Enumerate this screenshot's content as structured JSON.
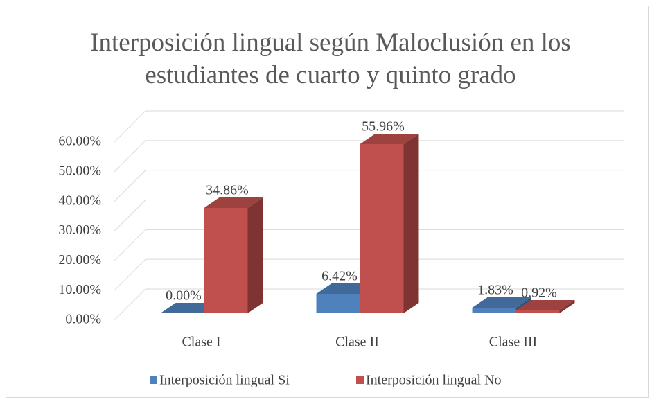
{
  "chart_data": {
    "type": "bar3d",
    "title": "Interposición lingual según Maloclusión en los estudiantes de cuarto y quinto grado",
    "categories": [
      "Clase I",
      "Clase II",
      "Clase III"
    ],
    "series": [
      {
        "name": "Interposición lingual Si",
        "color": "#4f81bd",
        "values": [
          0,
          6.42,
          1.83
        ],
        "value_labels": [
          "0.00%",
          "6.42%",
          "1.83%"
        ]
      },
      {
        "name": "Interposición lingual No",
        "color": "#c0504d",
        "values": [
          34.86,
          55.96,
          0.92
        ],
        "value_labels": [
          "34.86%",
          "55.96%",
          "0.92%"
        ]
      }
    ],
    "ylim": [
      0,
      60
    ],
    "yticks": [
      {
        "value": 0,
        "label": "0.00%"
      },
      {
        "value": 10,
        "label": "10.00%"
      },
      {
        "value": 20,
        "label": "20.00%"
      },
      {
        "value": 30,
        "label": "30.00%"
      },
      {
        "value": 40,
        "label": "40.00%"
      },
      {
        "value": 50,
        "label": "50.00%"
      },
      {
        "value": 60,
        "label": "60.00%"
      }
    ],
    "grid": true,
    "legend": "bottom"
  }
}
